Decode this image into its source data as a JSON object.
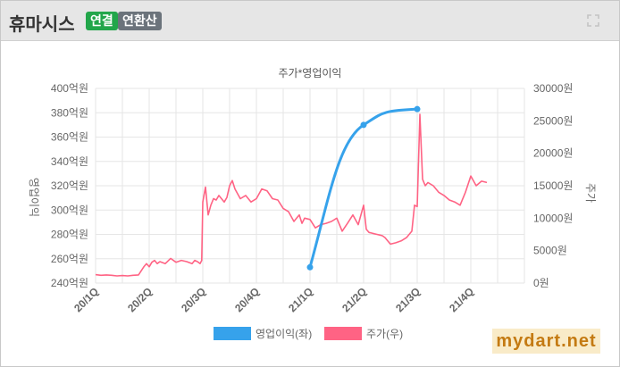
{
  "header": {
    "company": "휴마시스",
    "badge_consolidated": "연결",
    "badge_annualized": "연환산",
    "expand_icon": "expand-icon"
  },
  "watermark": "mydart.net",
  "colors": {
    "profit": "#36a2eb",
    "price": "#ff6384",
    "badge_green": "#22a64a",
    "badge_gray": "#6b737b"
  },
  "chart_data": {
    "type": "line",
    "title": "주가*영업이익",
    "categories": [
      "20/1Q",
      "20/2Q",
      "20/3Q",
      "20/4Q",
      "21/1Q",
      "21/2Q",
      "21/3Q",
      "21/4Q"
    ],
    "y_left": {
      "label": "영업이익",
      "min": 240,
      "max": 400,
      "step": 20,
      "unit": "억원",
      "ticks": [
        "240억원",
        "260억원",
        "280억원",
        "300억원",
        "320억원",
        "340억원",
        "360억원",
        "380억원",
        "400억원"
      ]
    },
    "y_right": {
      "label": "주가",
      "min": 0,
      "max": 30000,
      "step": 5000,
      "unit": "원",
      "ticks": [
        "0원",
        "5000원",
        "10000원",
        "15000원",
        "20000원",
        "25000원",
        "30000원"
      ]
    },
    "legend": {
      "position": "bottom",
      "profit_label": "영업이익(좌)",
      "price_label": "주가(우)"
    },
    "series": [
      {
        "name": "영업이익(좌)",
        "axis": "left",
        "x": [
          4,
          5,
          6
        ],
        "values": [
          253,
          370,
          383
        ]
      },
      {
        "name": "주가(우)",
        "axis": "right",
        "x": [
          0,
          0.1,
          0.2,
          0.3,
          0.4,
          0.5,
          0.6,
          0.7,
          0.8,
          0.9,
          0.95,
          1.0,
          1.05,
          1.1,
          1.15,
          1.2,
          1.3,
          1.4,
          1.5,
          1.6,
          1.7,
          1.8,
          1.85,
          1.9,
          1.95,
          1.98,
          2.0,
          2.05,
          2.1,
          2.15,
          2.2,
          2.25,
          2.3,
          2.4,
          2.45,
          2.5,
          2.55,
          2.6,
          2.7,
          2.8,
          2.9,
          3.0,
          3.1,
          3.2,
          3.3,
          3.4,
          3.5,
          3.6,
          3.7,
          3.75,
          3.8,
          3.85,
          3.9,
          4.0,
          4.1,
          4.2,
          4.3,
          4.4,
          4.5,
          4.6,
          4.7,
          4.8,
          4.9,
          5.0,
          5.05,
          5.1,
          5.15,
          5.2,
          5.25,
          5.3,
          5.35,
          5.4,
          5.5,
          5.6,
          5.7,
          5.8,
          5.9,
          5.95,
          6.0,
          6.05,
          6.1,
          6.15,
          6.2,
          6.3,
          6.4,
          6.5,
          6.6,
          6.7,
          6.8,
          6.9,
          7.0,
          7.1,
          7.2,
          7.3
        ],
        "values": [
          1300,
          1200,
          1250,
          1200,
          1100,
          1150,
          1100,
          1200,
          1250,
          2500,
          3000,
          2500,
          3200,
          3500,
          3000,
          3300,
          3000,
          3800,
          3200,
          3500,
          3300,
          3000,
          3500,
          3300,
          3000,
          3500,
          12500,
          14800,
          10500,
          12000,
          13000,
          12800,
          13500,
          12500,
          13200,
          15000,
          15800,
          14500,
          13000,
          13500,
          12500,
          13000,
          14500,
          14200,
          13000,
          12800,
          11500,
          11000,
          9500,
          10000,
          10500,
          9200,
          10000,
          9800,
          8500,
          9000,
          9200,
          9500,
          10000,
          8000,
          9200,
          10500,
          9000,
          12000,
          8300,
          7800,
          7700,
          7600,
          7500,
          7400,
          7300,
          7000,
          6000,
          6200,
          6500,
          7000,
          8000,
          12000,
          11800,
          26000,
          16000,
          15000,
          15500,
          15000,
          14000,
          13500,
          12800,
          12500,
          12000,
          14000,
          16500,
          15000,
          15700,
          15500
        ]
      }
    ]
  }
}
